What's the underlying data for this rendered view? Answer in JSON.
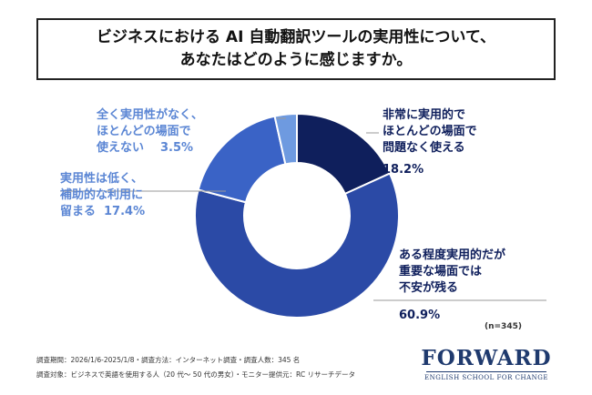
{
  "title": {
    "line1": "ビジネスにおける AI 自動翻訳ツールの実用性について、",
    "line2": "あなたはどのように感じますか。"
  },
  "chart_data": {
    "type": "pie",
    "style": "donut",
    "series": [
      {
        "label_lines": [
          "非常に実用的で",
          "ほとんどの場面で",
          "問題なく使える"
        ],
        "value_text": "18.2%",
        "value": 18.2,
        "color": "#0f1f5c"
      },
      {
        "label_lines": [
          "ある程度実用的だが",
          "重要な場面では",
          "不安が残る"
        ],
        "value_text": "60.9%",
        "value": 60.9,
        "color": "#2b4aa6"
      },
      {
        "label_lines": [
          "実用性は低く、",
          "補助的な利用に",
          "留まる"
        ],
        "value_text": "17.4%",
        "value": 17.4,
        "color": "#3a63c6"
      },
      {
        "label_lines": [
          "全く実用性がなく、",
          "ほとんどの場面で",
          "使えない"
        ],
        "value_text": "3.5%",
        "value": 3.5,
        "color": "#6e9ae0"
      }
    ],
    "label_colors": {
      "dark": "#0f1f5c",
      "light": "#5b86d4"
    }
  },
  "n_label": "(n=345)",
  "footer": {
    "line1": "調査期間：2026/1/6-2025/1/8・調査方法：インターネット調査・調査人数：345 名",
    "line2": "調査対象：ビジネスで英語を使用する人（20 代～ 50 代の男女）・モニター提供元：RC リサーチデータ"
  },
  "logo": {
    "word": "FORWARD",
    "tagline": "ENGLISH SCHOOL FOR CHANGE"
  }
}
